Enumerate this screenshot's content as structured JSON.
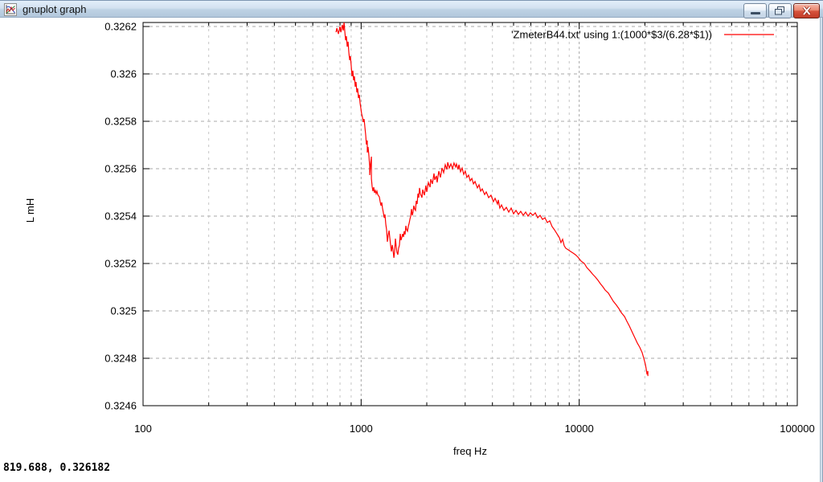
{
  "window": {
    "title": "gnuplot graph",
    "controls": [
      {
        "name": "minimize"
      },
      {
        "name": "restore"
      },
      {
        "name": "close"
      }
    ]
  },
  "status_bar": {
    "coordinates": "819.688, 0.326182"
  },
  "colors": {
    "series_red": "#ff0000",
    "grid_major": "#a8a8a8",
    "grid_minor": "#c6c6c6",
    "titlebar_top": "#e3eefa",
    "titlebar_bottom": "#b2c7dc",
    "close_button_red": "#d6543d"
  },
  "chart_data": {
    "type": "line",
    "title": "",
    "xlabel": "freq Hz",
    "ylabel": "L mH",
    "x_scale": "log",
    "xlim": [
      100,
      100000
    ],
    "ylim": [
      0.3246,
      0.326217
    ],
    "grid": {
      "major": true,
      "minor_x": true,
      "style": "dashed-gray"
    },
    "legend_position": "top-right-inside",
    "xticks": {
      "values": [
        100,
        1000,
        10000,
        100000
      ],
      "labels": [
        "100",
        "1000",
        "10000",
        "100000"
      ]
    },
    "yticks": {
      "values": [
        0.3246,
        0.3248,
        0.325,
        0.3252,
        0.3254,
        0.3256,
        0.3258,
        0.326,
        0.3262
      ],
      "labels": [
        "0.3246",
        "0.3248",
        "0.325",
        "0.3252",
        "0.3254",
        "0.3256",
        "0.3258",
        "0.326",
        "0.3262"
      ]
    },
    "series": [
      {
        "name": "'ZmeterB44.txt' using 1:(1000*$3/(6.28*$1))",
        "color": "#ff0000",
        "points": [
          [
            767,
            0.326176
          ],
          [
            774,
            0.326193
          ],
          [
            787,
            0.326169
          ],
          [
            800,
            0.3262
          ],
          [
            807,
            0.326176
          ],
          [
            820,
            0.326207
          ],
          [
            828,
            0.326183
          ],
          [
            835,
            0.326217
          ],
          [
            842,
            0.326176
          ],
          [
            849,
            0.326142
          ],
          [
            856,
            0.326159
          ],
          [
            863,
            0.326115
          ],
          [
            871,
            0.326136
          ],
          [
            878,
            0.326092
          ],
          [
            886,
            0.326058
          ],
          [
            893,
            0.326075
          ],
          [
            901,
            0.326034
          ],
          [
            908,
            0.32599
          ],
          [
            916,
            0.326014
          ],
          [
            924,
            0.325973
          ],
          [
            932,
            0.32599
          ],
          [
            940,
            0.325946
          ],
          [
            948,
            0.325966
          ],
          [
            956,
            0.325922
          ],
          [
            964,
            0.325939
          ],
          [
            972,
            0.325898
          ],
          [
            981,
            0.325912
          ],
          [
            989,
            0.325878
          ],
          [
            997,
            0.325854
          ],
          [
            1006,
            0.325831
          ],
          [
            1014,
            0.325817
          ],
          [
            1023,
            0.325797
          ],
          [
            1032,
            0.32581
          ],
          [
            1040,
            0.325776
          ],
          [
            1049,
            0.325742
          ],
          [
            1057,
            0.325702
          ],
          [
            1067,
            0.325719
          ],
          [
            1067,
            0.325668
          ],
          [
            1076,
            0.325692
          ],
          [
            1086,
            0.325651
          ],
          [
            1095,
            0.32561
          ],
          [
            1095,
            0.325573
          ],
          [
            1104,
            0.325617
          ],
          [
            1114,
            0.325651
          ],
          [
            1114,
            0.325559
          ],
          [
            1123,
            0.325525
          ],
          [
            1133,
            0.325505
          ],
          [
            1142,
            0.325522
          ],
          [
            1152,
            0.325498
          ],
          [
            1162,
            0.325508
          ],
          [
            1172,
            0.325495
          ],
          [
            1182,
            0.325505
          ],
          [
            1192,
            0.325491
          ],
          [
            1212,
            0.325481
          ],
          [
            1222,
            0.325461
          ],
          [
            1233,
            0.325444
          ],
          [
            1243,
            0.325458
          ],
          [
            1253,
            0.325434
          ],
          [
            1265,
            0.325414
          ],
          [
            1276,
            0.325393
          ],
          [
            1286,
            0.325407
          ],
          [
            1297,
            0.325366
          ],
          [
            1308,
            0.325342
          ],
          [
            1320,
            0.325292
          ],
          [
            1331,
            0.325319
          ],
          [
            1343,
            0.325339
          ],
          [
            1354,
            0.325309
          ],
          [
            1366,
            0.325275
          ],
          [
            1377,
            0.325251
          ],
          [
            1389,
            0.325278
          ],
          [
            1400,
            0.325258
          ],
          [
            1413,
            0.325224
          ],
          [
            1424,
            0.325251
          ],
          [
            1436,
            0.325305
          ],
          [
            1448,
            0.325271
          ],
          [
            1460,
            0.325247
          ],
          [
            1473,
            0.325237
          ],
          [
            1485,
            0.325264
          ],
          [
            1498,
            0.325278
          ],
          [
            1511,
            0.325325
          ],
          [
            1524,
            0.325298
          ],
          [
            1538,
            0.325312
          ],
          [
            1550,
            0.325325
          ],
          [
            1563,
            0.325312
          ],
          [
            1576,
            0.325336
          ],
          [
            1590,
            0.325322
          ],
          [
            1604,
            0.325359
          ],
          [
            1617,
            0.325342
          ],
          [
            1631,
            0.325336
          ],
          [
            1645,
            0.325356
          ],
          [
            1659,
            0.325369
          ],
          [
            1674,
            0.325386
          ],
          [
            1687,
            0.3254
          ],
          [
            1702,
            0.32543
          ],
          [
            1716,
            0.325403
          ],
          [
            1730,
            0.325417
          ],
          [
            1745,
            0.325444
          ],
          [
            1760,
            0.32543
          ],
          [
            1776,
            0.325424
          ],
          [
            1790,
            0.325464
          ],
          [
            1806,
            0.325451
          ],
          [
            1822,
            0.325495
          ],
          [
            1837,
            0.325478
          ],
          [
            1853,
            0.325519
          ],
          [
            1868,
            0.325495
          ],
          [
            1900,
            0.325478
          ],
          [
            1916,
            0.325512
          ],
          [
            1949,
            0.325488
          ],
          [
            1982,
            0.325529
          ],
          [
            2000,
            0.325502
          ],
          [
            2034,
            0.325542
          ],
          [
            2070,
            0.325522
          ],
          [
            2087,
            0.325556
          ],
          [
            2123,
            0.325536
          ],
          [
            2158,
            0.32558
          ],
          [
            2176,
            0.325553
          ],
          [
            2214,
            0.32557
          ],
          [
            2232,
            0.325542
          ],
          [
            2271,
            0.32559
          ],
          [
            2310,
            0.325563
          ],
          [
            2349,
            0.325603
          ],
          [
            2390,
            0.325583
          ],
          [
            2431,
            0.325617
          ],
          [
            2472,
            0.325597
          ],
          [
            2495,
            0.325627
          ],
          [
            2536,
            0.325603
          ],
          [
            2579,
            0.32562
          ],
          [
            2623,
            0.3256
          ],
          [
            2667,
            0.325624
          ],
          [
            2713,
            0.325607
          ],
          [
            2735,
            0.32562
          ],
          [
            2783,
            0.325597
          ],
          [
            2808,
            0.325617
          ],
          [
            2855,
            0.325587
          ],
          [
            2904,
            0.325603
          ],
          [
            2954,
            0.325576
          ],
          [
            3004,
            0.32559
          ],
          [
            3055,
            0.325563
          ],
          [
            3109,
            0.325573
          ],
          [
            3162,
            0.325549
          ],
          [
            3218,
            0.325559
          ],
          [
            3273,
            0.325536
          ],
          [
            3327,
            0.325546
          ],
          [
            3412,
            0.325519
          ],
          [
            3472,
            0.325532
          ],
          [
            3532,
            0.325505
          ],
          [
            3592,
            0.325515
          ],
          [
            3683,
            0.325491
          ],
          [
            3748,
            0.325502
          ],
          [
            3844,
            0.325478
          ],
          [
            3940,
            0.325488
          ],
          [
            4042,
            0.325461
          ],
          [
            4114,
            0.325475
          ],
          [
            4220,
            0.325451
          ],
          [
            4255,
            0.325468
          ],
          [
            4324,
            0.325434
          ],
          [
            4402,
            0.325447
          ],
          [
            4515,
            0.325424
          ],
          [
            4633,
            0.325437
          ],
          [
            4752,
            0.325417
          ],
          [
            4873,
            0.325434
          ],
          [
            5000,
            0.32541
          ],
          [
            5129,
            0.325424
          ],
          [
            5262,
            0.325407
          ],
          [
            5395,
            0.32542
          ],
          [
            5537,
            0.325403
          ],
          [
            5680,
            0.325417
          ],
          [
            5826,
            0.3254
          ],
          [
            5973,
            0.325414
          ],
          [
            6130,
            0.325403
          ],
          [
            6288,
            0.325414
          ],
          [
            6449,
            0.325393
          ],
          [
            6615,
            0.325403
          ],
          [
            6785,
            0.325386
          ],
          [
            6961,
            0.325393
          ],
          [
            7140,
            0.325373
          ],
          [
            7325,
            0.32538
          ],
          [
            7510,
            0.325356
          ],
          [
            7705,
            0.325342
          ],
          [
            7906,
            0.325325
          ],
          [
            8110,
            0.325309
          ],
          [
            8250,
            0.325288
          ],
          [
            8389,
            0.325302
          ],
          [
            8533,
            0.325275
          ],
          [
            8680,
            0.325264
          ],
          [
            8900,
            0.325258
          ],
          [
            9130,
            0.325251
          ],
          [
            9370,
            0.325244
          ],
          [
            9610,
            0.325237
          ],
          [
            9860,
            0.325227
          ],
          [
            10210,
            0.32521
          ],
          [
            10560,
            0.3252
          ],
          [
            10830,
            0.325183
          ],
          [
            11200,
            0.325169
          ],
          [
            11500,
            0.325156
          ],
          [
            11880,
            0.325142
          ],
          [
            12190,
            0.325129
          ],
          [
            12500,
            0.325115
          ],
          [
            12830,
            0.325102
          ],
          [
            13150,
            0.325088
          ],
          [
            13610,
            0.325075
          ],
          [
            13960,
            0.325058
          ],
          [
            14320,
            0.325041
          ],
          [
            14820,
            0.325024
          ],
          [
            15200,
            0.32501
          ],
          [
            15590,
            0.324993
          ],
          [
            16140,
            0.324976
          ],
          [
            16540,
            0.324956
          ],
          [
            16980,
            0.324936
          ],
          [
            17550,
            0.324908
          ],
          [
            18020,
            0.324885
          ],
          [
            18470,
            0.324864
          ],
          [
            18940,
            0.324847
          ],
          [
            19440,
            0.324824
          ],
          [
            19770,
            0.3248
          ],
          [
            20100,
            0.324776
          ],
          [
            20280,
            0.324756
          ],
          [
            20470,
            0.324732
          ],
          [
            20650,
            0.324746
          ],
          [
            20650,
            0.324725
          ]
        ]
      }
    ]
  }
}
